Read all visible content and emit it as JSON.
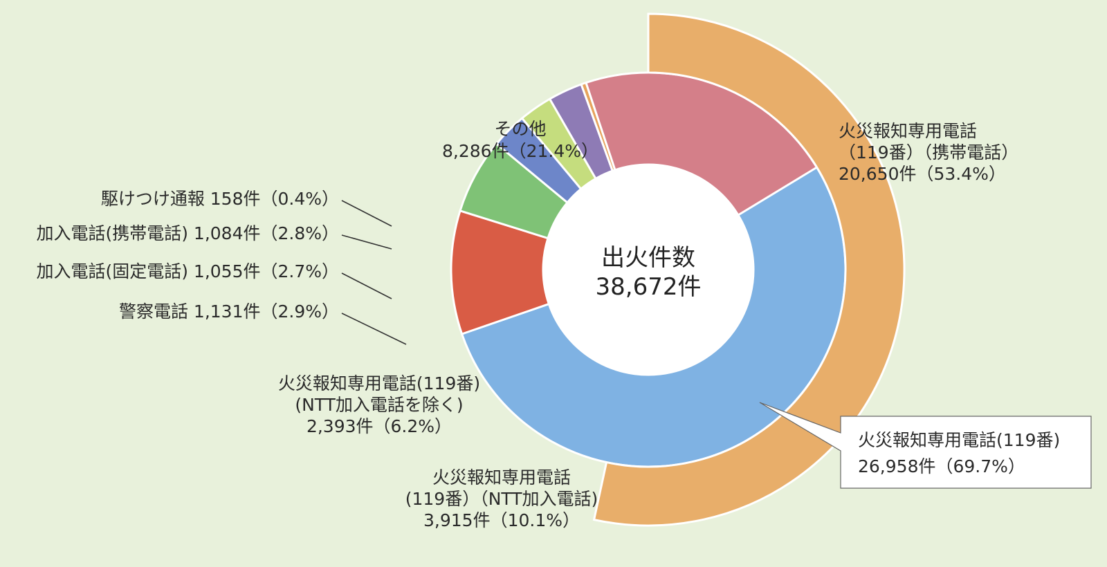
{
  "chart_data": {
    "type": "pie",
    "center_label": {
      "line1": "出火件数",
      "line2": "38,672件"
    },
    "total": 38672,
    "rings": [
      {
        "ring": "inner",
        "slices": [
          {
            "label": "火災報知専用電話(119番)",
            "value": 26958,
            "percent": 69.7,
            "color": "#7fb2e3",
            "text": [
              "火災報知専用電話(119番)",
              "26,958件（69.7%）"
            ]
          },
          {
            "label": "火災報知専用電話(119番)（NTT加入電話）",
            "value": 3915,
            "percent": 10.1,
            "color": "#d95c45",
            "text": [
              "火災報知専用電話",
              "(119番）（NTT加入電話)",
              "3,915件（10.1%）"
            ]
          },
          {
            "label": "火災報知専用電話(119番)(NTT加入電話を除く)",
            "value": 2393,
            "percent": 6.2,
            "color": "#7fc276",
            "text": [
              "火災報知専用電話(119番)",
              "(NTT加入電話を除く)",
              "2,393件（6.2%）"
            ]
          },
          {
            "label": "警察電話",
            "value": 1131,
            "percent": 2.9,
            "color": "#6d86c9",
            "text": [
              "警察電話  1,131件（2.9%）"
            ]
          },
          {
            "label": "加入電話(固定電話)",
            "value": 1055,
            "percent": 2.7,
            "color": "#c5dd7e",
            "text": [
              "加入電話(固定電話) 1,055件（2.7%）"
            ]
          },
          {
            "label": "加入電話(携帯電話)",
            "value": 1084,
            "percent": 2.8,
            "color": "#8e7bb5",
            "text": [
              "加入電話(携帯電話) 1,084件（2.8%）"
            ]
          },
          {
            "label": "駆けつけ通報",
            "value": 158,
            "percent": 0.4,
            "color": "#e6a35c",
            "text": [
              "駆けつけ通報  158件（0.4%）"
            ]
          },
          {
            "label": "その他",
            "value": 8286,
            "percent": 21.4,
            "color": "#d47f89",
            "text": [
              "その他",
              "8,286件（21.4%）"
            ]
          }
        ]
      },
      {
        "ring": "outer",
        "parent": "火災報知専用電話(119番)",
        "slices": [
          {
            "label": "火災報知専用電話(119番)（携帯電話）",
            "value": 20650,
            "percent": 53.4,
            "color": "#e8ae6a",
            "text": [
              "火災報知専用電話",
              "（119番）（携帯電話）",
              "20,650件（53.4%）"
            ]
          }
        ]
      }
    ]
  }
}
